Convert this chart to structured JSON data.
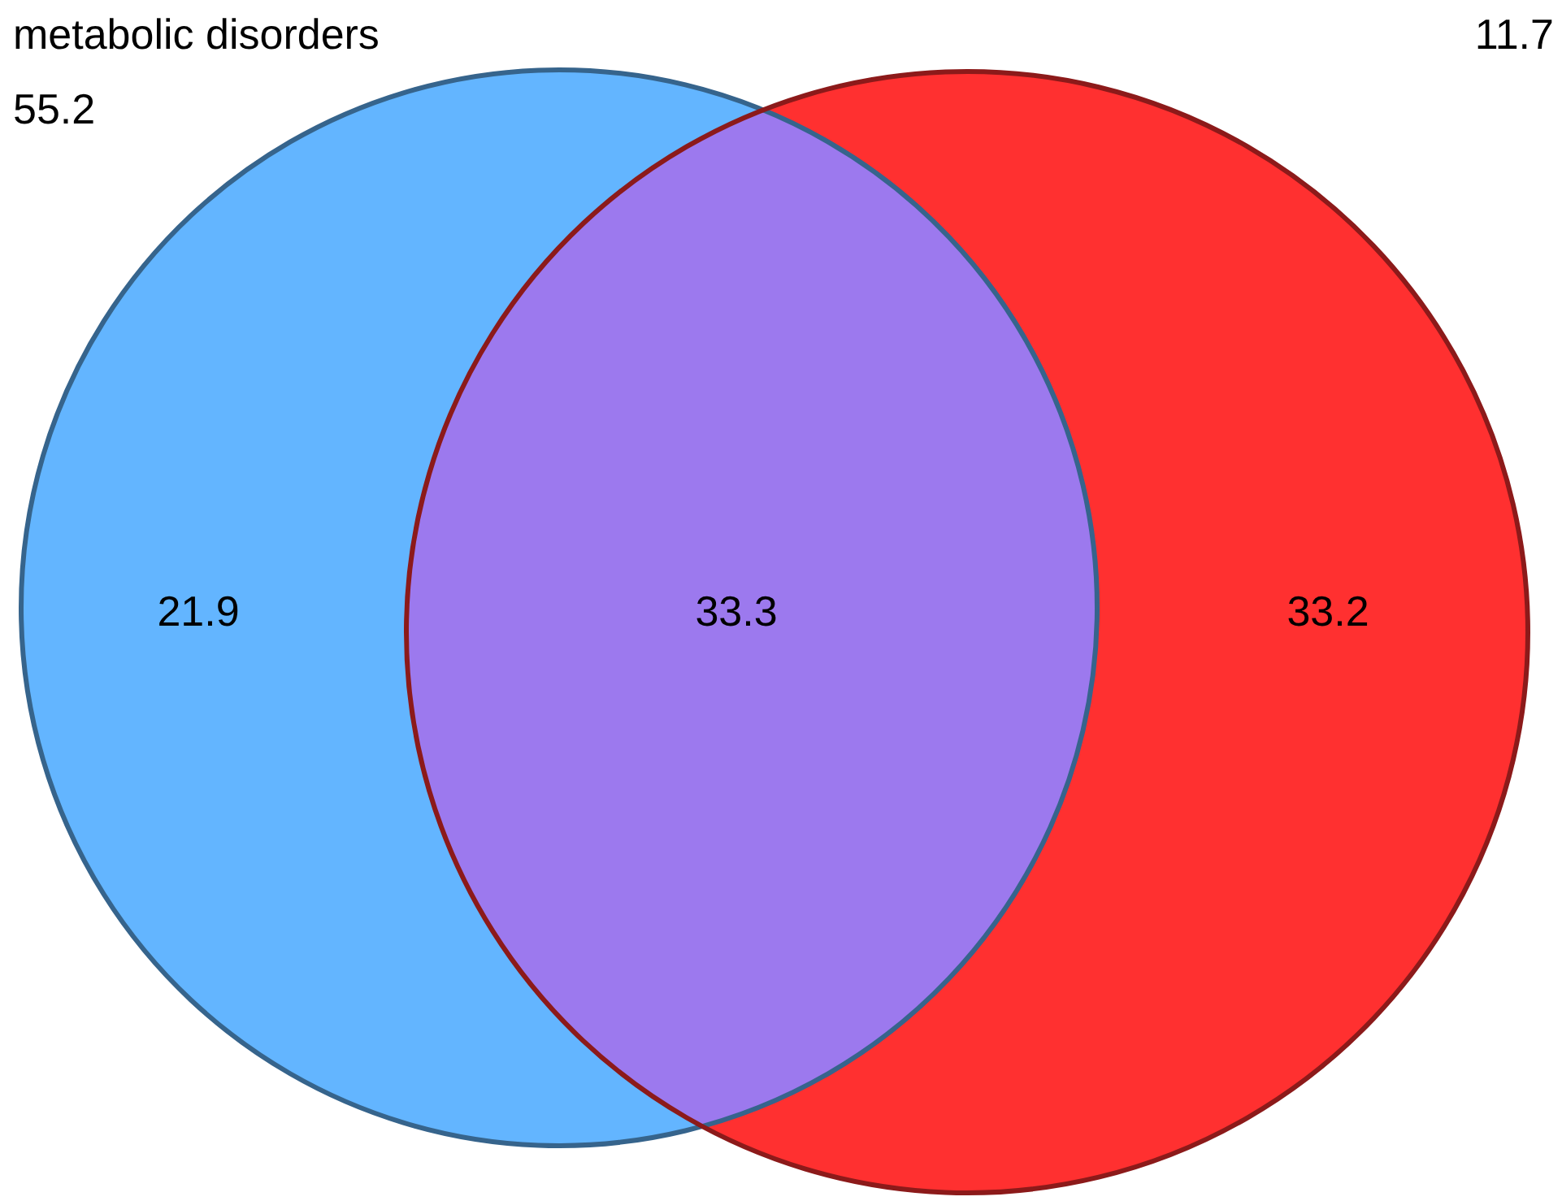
{
  "chart_data": {
    "type": "other",
    "categories": [
      null,
      null,
      null
    ],
    "values": [
      21.9,
      33.3,
      33.2
    ],
    "data_labels": true,
    "colors": [
      "#63b5ff",
      "#9c79ee",
      "#ff3030"
    ],
    "annotations": [
      "metabolic disorders",
      "55.2",
      "11.7"
    ]
  }
}
